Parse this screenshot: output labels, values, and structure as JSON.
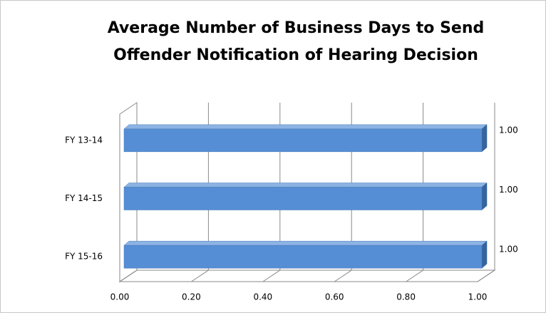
{
  "chart_data": {
    "type": "bar",
    "orientation": "horizontal",
    "title": [
      "Average Number of Business Days to Send",
      "Offender Notification  of Hearing Decision"
    ],
    "categories": [
      "FY 13-14",
      "FY 14-15",
      "FY 15-16"
    ],
    "values": [
      1,
      1,
      1
    ],
    "value_labels": [
      "1.00",
      "1.00",
      "1.00"
    ],
    "color": "#558ed5",
    "xlim": [
      0,
      1
    ],
    "xticks": [
      {
        "value": 0,
        "label": "0.00"
      },
      {
        "value": 0.2,
        "label": "0.20"
      },
      {
        "value": 0.4,
        "label": "0.40"
      },
      {
        "value": 0.6,
        "label": "0.60"
      },
      {
        "value": 0.8,
        "label": "0.80"
      },
      {
        "value": 1,
        "label": "1.00"
      }
    ],
    "grid": true
  }
}
